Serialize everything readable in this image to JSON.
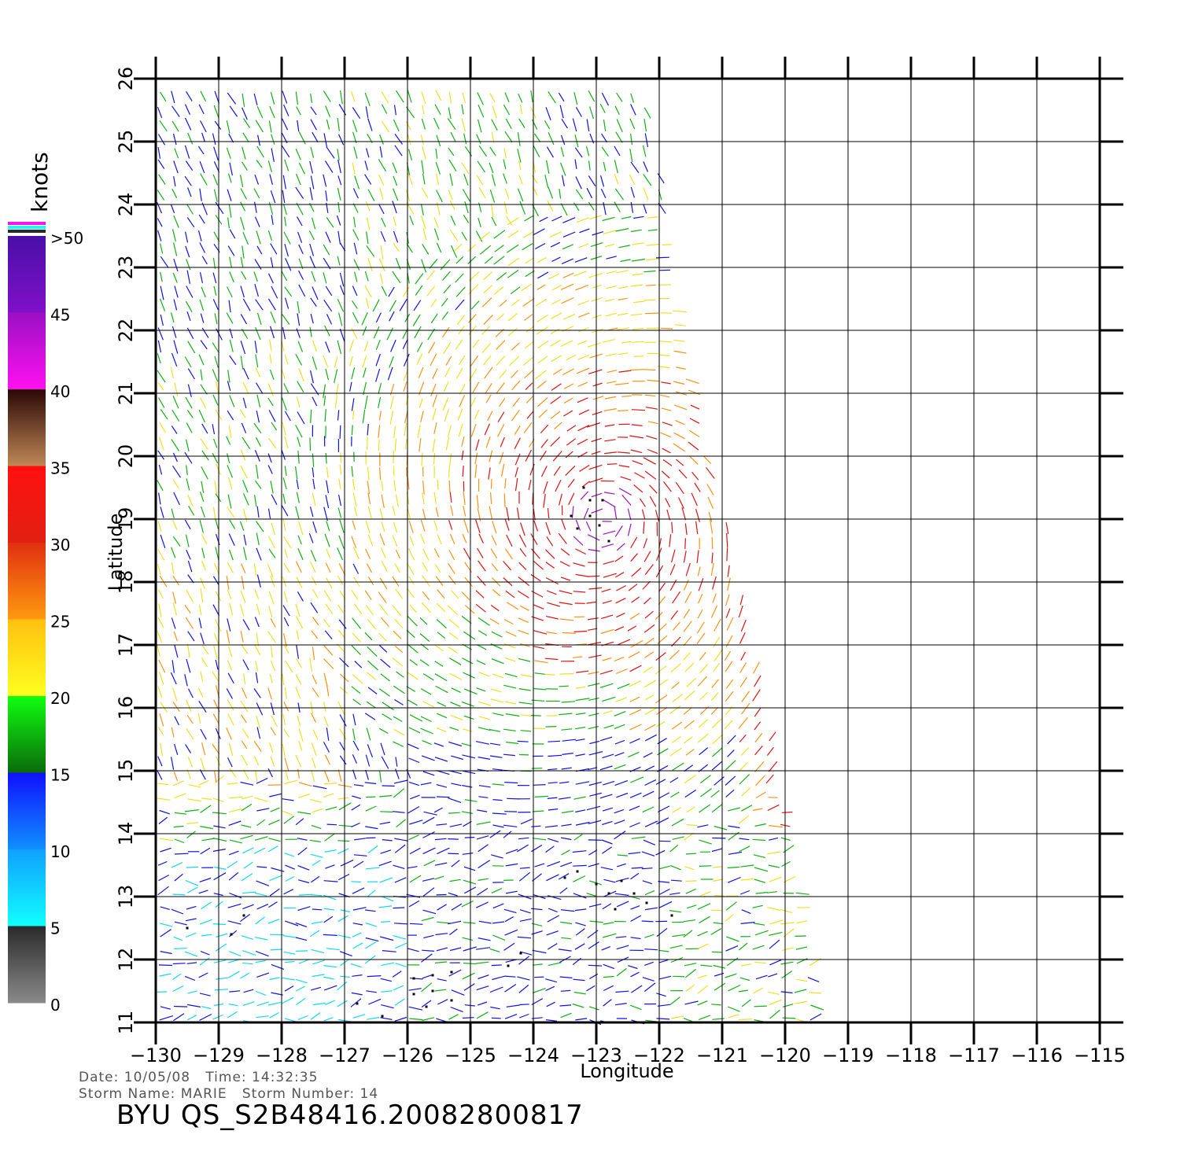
{
  "colorbar": {
    "unit": "knots",
    "labels": [
      ">50",
      "45",
      "40",
      "35",
      "30",
      "25",
      "20",
      "15",
      "10",
      "5",
      "0"
    ],
    "band_colors": [
      "#5a1fb0",
      "#a20fc0",
      "#ff10e0",
      "#3a1008",
      "#c08050",
      "#ff1010",
      "#ff6a10",
      "#ffd010",
      "#10ee10",
      "#0a7a0a",
      "#1010ff",
      "#10a0ff",
      "#10f0ff",
      "#303030",
      "#888888"
    ]
  },
  "map": {
    "lon_range": [
      -130,
      -115
    ],
    "lat_range": [
      11,
      26
    ],
    "x_ticks": [
      "-130",
      "-129",
      "-128",
      "-127",
      "-126",
      "-125",
      "-124",
      "-123",
      "-122",
      "-121",
      "-120",
      "-119",
      "-118",
      "-117",
      "-116",
      "-115"
    ],
    "y_ticks": [
      "11",
      "12",
      "13",
      "14",
      "15",
      "16",
      "17",
      "18",
      "19",
      "20",
      "21",
      "22",
      "23",
      "24",
      "25",
      "26"
    ],
    "xlabel": "Longitude",
    "ylabel": "Latitude",
    "wind_colors": {
      "cyan": "#12d8f0",
      "blue": "#1010e8",
      "green": "#10b010",
      "yellow": "#f0e020",
      "orange": "#ff9010",
      "red": "#e01010",
      "purple": "#a010c0",
      "rain_flag": "#000000"
    }
  },
  "info": {
    "date_line": "Date: 10/05/08   Time: 14:32:35",
    "storm_line": "Storm Name: MARIE   Storm Number: 14",
    "product": "BYU QS_S2B48416.20082800817"
  }
}
